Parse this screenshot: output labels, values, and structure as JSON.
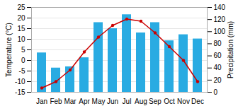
{
  "chart_data": {
    "type": "bar",
    "categories": [
      "Jan",
      "Feb",
      "Mar",
      "Apr",
      "May",
      "Jun",
      "Jul",
      "Aug",
      "Sep",
      "Oct",
      "Nov",
      "Dec"
    ],
    "ylabel": "Temperature (°C)",
    "y2label": "Precipitation (mm)",
    "ylim": [
      -15,
      25
    ],
    "yticks": [
      -15,
      -10,
      -5,
      0,
      5,
      10,
      15,
      20,
      25
    ],
    "y2lim": [
      0,
      140
    ],
    "y2ticks": [
      0,
      20,
      40,
      60,
      80,
      100,
      120,
      140
    ],
    "grid": true,
    "series": [
      {
        "type": "bar",
        "axis": "y2",
        "color": "#29ABE2",
        "values": [
          65,
          40,
          42,
          57,
          115,
          105,
          128,
          98,
          115,
          85,
          95,
          88
        ]
      },
      {
        "type": "line",
        "marker": "circle",
        "color": "#CC0000",
        "values": [
          -13,
          -10,
          -4.5,
          4,
          11,
          16.5,
          19.5,
          18.5,
          13,
          6.5,
          0,
          -10
        ]
      }
    ]
  }
}
